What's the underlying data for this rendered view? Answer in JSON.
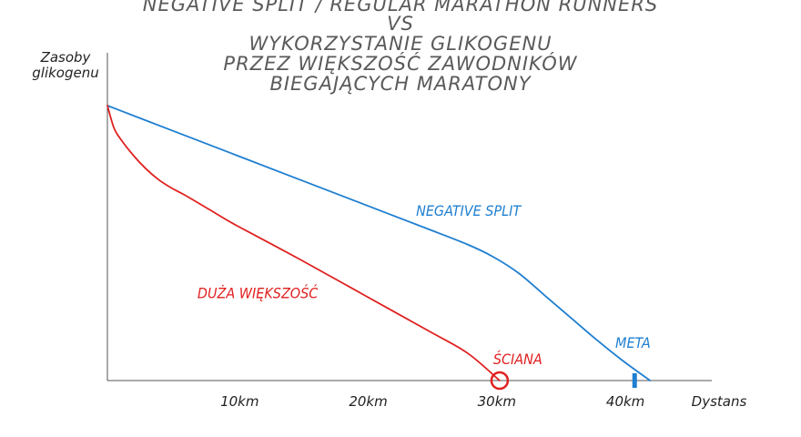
{
  "chart_data": {
    "type": "line",
    "title_lines": [
      "NEGATIVE SPLIT / REGULAR MARATHON RUNNERS",
      "VS",
      "WYKORZYSTANIE GLIKOGENU",
      "PRZEZ WIĘKSZOŚĆ ZAWODNIKÓW",
      "BIEGAJĄCYCH MARATONY"
    ],
    "ylabel_lines": [
      "Zasoby",
      "glikogenu"
    ],
    "xlabel": "Dystans",
    "x_unit": "km",
    "xlim": [
      0,
      47
    ],
    "ylim": [
      0,
      100
    ],
    "x_ticks": [
      {
        "value": 10,
        "label": "10km"
      },
      {
        "value": 20,
        "label": "20km"
      },
      {
        "value": 30,
        "label": "30km"
      },
      {
        "value": 40,
        "label": "40km"
      }
    ],
    "grid": false,
    "legend": "none",
    "series": [
      {
        "name": "NEGATIVE SPLIT",
        "color": "#1f7fd0",
        "x": [
          0,
          5,
          10,
          15,
          20,
          25,
          28,
          30,
          32,
          34,
          36,
          38,
          40,
          42.2
        ],
        "y": [
          100,
          91,
          82,
          73,
          64,
          55,
          49.5,
          45,
          39,
          31,
          23,
          15,
          7.5,
          0
        ]
      },
      {
        "name": "DUŻA WIĘKSZOŚĆ",
        "color": "#e02020",
        "x": [
          0,
          0.5,
          1,
          2,
          3,
          4,
          5,
          6,
          8,
          10,
          15,
          20,
          25,
          28,
          30.5
        ],
        "y": [
          100,
          92,
          88,
          82,
          77,
          73,
          70,
          67.5,
          62,
          56.5,
          44,
          31,
          18,
          10,
          0
        ]
      }
    ],
    "annotations": [
      {
        "text": "NEGATIVE SPLIT",
        "x": 24,
        "y": 60,
        "color": "#1f7fd0"
      },
      {
        "text": "DUŻA WIĘKSZOŚĆ",
        "x": 7,
        "y": 30,
        "color": "#e02020"
      },
      {
        "text": "ŚCIANA",
        "x": 30,
        "y": 6,
        "color": "#e02020"
      },
      {
        "text": "META",
        "x": 39.5,
        "y": 12,
        "color": "#1f7fd0"
      }
    ],
    "markers": [
      {
        "name": "wall-circle",
        "x": 30.5,
        "y": 0,
        "shape": "circle",
        "color": "#e02020"
      },
      {
        "name": "finish-marker",
        "x": 41,
        "y": 0,
        "shape": "bar",
        "color": "#1f7fd0"
      }
    ]
  }
}
